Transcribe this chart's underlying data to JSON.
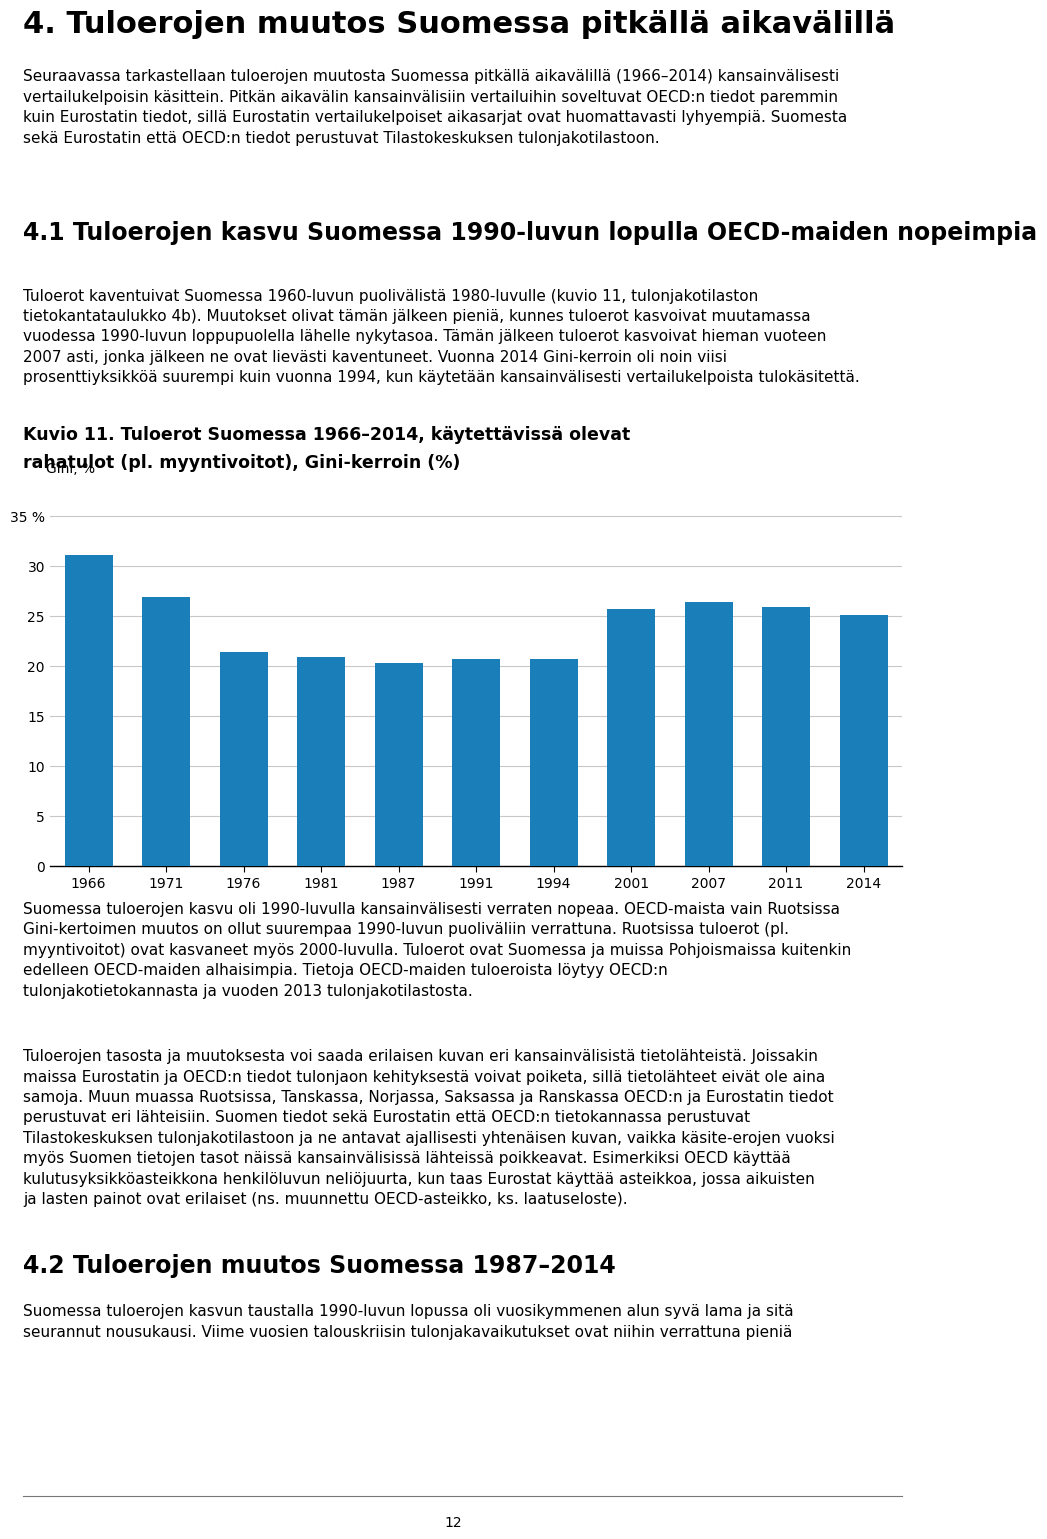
{
  "page_title": "4. Tuloerojen muutos Suomessa pitkällä aikavälillä",
  "figure_title_line1": "Kuvio 11. Tuloerot Suomessa 1966–2014, käytettävissä olevat",
  "figure_title_line2": "rahatulot (pl. myyntivoitot), Gini-kerroin (%)",
  "ylabel": "Gini, %",
  "years": [
    "1966",
    "1971",
    "1976",
    "1981",
    "1987",
    "1991",
    "1994",
    "2001",
    "2007",
    "2011",
    "2014"
  ],
  "values": [
    31.1,
    26.9,
    21.4,
    20.9,
    20.3,
    20.7,
    20.7,
    25.7,
    26.4,
    25.9,
    25.1
  ],
  "bar_color": "#1a7eb8",
  "yticks": [
    0,
    5,
    10,
    15,
    20,
    25,
    30,
    35
  ],
  "ytick_labels": [
    "0",
    "5",
    "10",
    "15",
    "20",
    "25",
    "30",
    "35 %"
  ],
  "ylim": [
    0,
    37
  ],
  "grid_color": "#c8c8c8",
  "background_color": "#ffffff",
  "link_color": "#1155cc",
  "page_number": "12",
  "title_fontsize": 22,
  "body_fontsize": 11.0,
  "section_title_fontsize": 17,
  "figure_title_fontsize": 12.5,
  "axis_label_fontsize": 10,
  "tick_fontsize": 10,
  "intro_lines": [
    "Seuraavassa tarkastellaan tuloerojen muutosta Suomessa pitkällä aikavälillä (1966–2014) kansainvälisesti",
    "vertailukelpoisin käsittein. Pitkän aikavälin kansainvälisiin vertailuihin soveltuvat OECD:n tiedot paremmin",
    "kuin Eurostatin tiedot, sillä Eurostatin vertailukelpoiset aikasarjat ovat huomattavasti lyhyempiä. Suomesta",
    "sekä Eurostatin että OECD:n tiedot perustuvat Tilastokeskuksen tulonjakotilastoon."
  ],
  "section1_title": "4.1 Tuloerojen kasvu Suomessa 1990-luvun lopulla OECD-maiden nopeimpia",
  "section1_lines": [
    "Tuloerot kaventuivat Suomessa 1960-luvun puolivälistä 1980-luvulle (kuvio 11, tulonjakotilaston",
    "tietokantataulukko 4b). Muutokset olivat tämän jälkeen pieniä, kunnes tuloerot kasvoivat muutamassa",
    "vuodessa 1990-luvun loppupuolella lähelle nykytasoa. Tämän jälkeen tuloerot kasvoivat hieman vuoteen",
    "2007 asti, jonka jälkeen ne ovat lievästi kaventuneet. Vuonna 2014 Gini-kerroin oli noin viisi",
    "prosenttiyksikköä suurempi kuin vuonna 1994, kun käytetään kansainvälisesti vertailukelpoista tulokäsitettä."
  ],
  "post1_lines": [
    "Suomessa tuloerojen kasvu oli 1990-luvulla kansainvälisesti verraten nopeaa. OECD-maista vain Ruotsissa",
    "Gini-kertoimen muutos on ollut suurempaa 1990-luvun puoliväliin verrattuna. Ruotsissa tuloerot (pl.",
    "myyntivoitot) ovat kasvaneet myös 2000-luvulla. Tuloerot ovat Suomessa ja muissa Pohjoismaissa kuitenkin",
    "edelleen OECD-maiden alhaisimpia. Tietoja OECD-maiden tuloeroista löytyy OECD:n",
    "tulonjakotietokannasta ja vuoden 2013 tulonjakotilastosta."
  ],
  "post2_lines": [
    "Tuloerojen tasosta ja muutoksesta voi saada erilaisen kuvan eri kansainvälisistä tietolähteistä. Joissakin",
    "maissa Eurostatin ja OECD:n tiedot tulonjaon kehityksestä voivat poiketa, sillä tietolähteet eivät ole aina",
    "samoja. Muun muassa Ruotsissa, Tanskassa, Norjassa, Saksassa ja Ranskassa OECD:n ja Eurostatin tiedot",
    "perustuvat eri lähteisiin. Suomen tiedot sekä Eurostatin että OECD:n tietokannassa perustuvat",
    "Tilastokeskuksen tulonjakotilastoon ja ne antavat ajallisesti yhtenäisen kuvan, vaikka käsite-erojen vuoksi",
    "myös Suomen tietojen tasot näissä kansainvälisissä lähteissä poikkeavat. Esimerkiksi OECD käyttää",
    "kulutusyksikköasteikkona henkilöluvun neliöjuurta, kun taas Eurostat käyttää asteikkoa, jossa aikuisten",
    "ja lasten painot ovat erilaiset (ns. muunnettu OECD-asteikko, ks. laatuseloste)."
  ],
  "section2_title": "4.2 Tuloerojen muutos Suomessa 1987–2014",
  "section2_lines": [
    "Suomessa tuloerojen kasvun taustalla 1990-luvun lopussa oli vuosikymmenen alun syvä lama ja sitä",
    "seurannut nousukausi. Viime vuosien talouskriisin tulonjakavaikutukset ovat niihin verrattuna pieniä"
  ]
}
